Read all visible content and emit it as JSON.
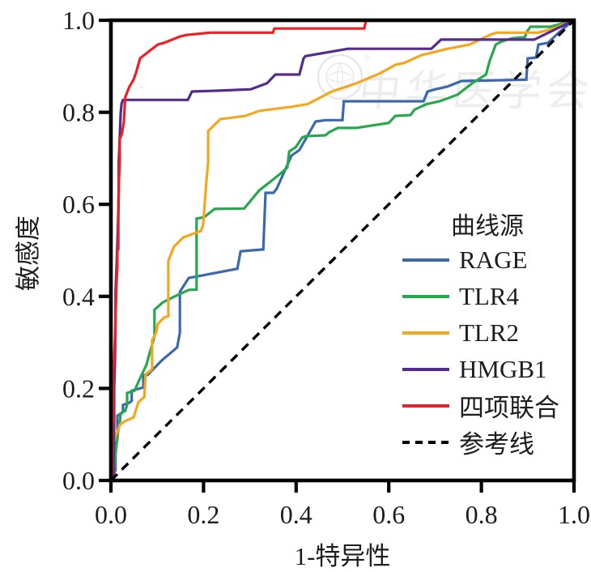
{
  "chart_data": {
    "type": "line",
    "title": "",
    "xlabel": "1-特异性",
    "ylabel": "敏感度",
    "xlim": [
      0,
      1
    ],
    "ylim": [
      0,
      1
    ],
    "grid": false,
    "xtick_labels": [
      "0.0",
      "0.2",
      "0.4",
      "0.6",
      "0.8",
      "1.0"
    ],
    "ytick_labels": [
      "0.0",
      "0.2",
      "0.4",
      "0.6",
      "0.8",
      "1.0"
    ],
    "xticks": [
      0,
      0.2,
      0.4,
      0.6,
      0.8,
      1.0
    ],
    "yticks": [
      0,
      0.2,
      0.4,
      0.6,
      0.8,
      1.0
    ],
    "legend_title": "曲线源",
    "legend_position": "lower-right-inside",
    "axis_color": "#000000",
    "text_color": "#1d1d1f",
    "series": [
      {
        "name": "RAGE",
        "color": "#3c68ae",
        "dashed": false,
        "points": [
          [
            0,
            0
          ],
          [
            0.01,
            0.023
          ],
          [
            0.01,
            0.081
          ],
          [
            0.014,
            0.088
          ],
          [
            0.014,
            0.141
          ],
          [
            0.023,
            0.146
          ],
          [
            0.026,
            0.15
          ],
          [
            0.026,
            0.164
          ],
          [
            0.04,
            0.169
          ],
          [
            0.045,
            0.173
          ],
          [
            0.045,
            0.195
          ],
          [
            0.059,
            0.199
          ],
          [
            0.07,
            0.202
          ],
          [
            0.07,
            0.229
          ],
          [
            0.079,
            0.229
          ],
          [
            0.11,
            0.261
          ],
          [
            0.143,
            0.289
          ],
          [
            0.149,
            0.321
          ],
          [
            0.149,
            0.41
          ],
          [
            0.168,
            0.44
          ],
          [
            0.273,
            0.46
          ],
          [
            0.28,
            0.498
          ],
          [
            0.329,
            0.502
          ],
          [
            0.334,
            0.625
          ],
          [
            0.351,
            0.625
          ],
          [
            0.358,
            0.634
          ],
          [
            0.39,
            0.706
          ],
          [
            0.407,
            0.718
          ],
          [
            0.442,
            0.78
          ],
          [
            0.463,
            0.783
          ],
          [
            0.5,
            0.783
          ],
          [
            0.503,
            0.824
          ],
          [
            0.675,
            0.824
          ],
          [
            0.684,
            0.845
          ],
          [
            0.701,
            0.85
          ],
          [
            0.727,
            0.856
          ],
          [
            0.757,
            0.868
          ],
          [
            0.897,
            0.871
          ],
          [
            0.9,
            0.917
          ],
          [
            0.918,
            0.919
          ],
          [
            0.923,
            0.947
          ],
          [
            0.944,
            0.951
          ],
          [
            0.967,
            0.973
          ],
          [
            0.988,
            0.991
          ],
          [
            1,
            1
          ]
        ]
      },
      {
        "name": "TLR4",
        "color": "#28a74e",
        "dashed": false,
        "points": [
          [
            0,
            0
          ],
          [
            0.005,
            0.014
          ],
          [
            0.016,
            0.111
          ],
          [
            0.019,
            0.12
          ],
          [
            0.021,
            0.146
          ],
          [
            0.031,
            0.151
          ],
          [
            0.035,
            0.164
          ],
          [
            0.035,
            0.19
          ],
          [
            0.051,
            0.195
          ],
          [
            0.063,
            0.222
          ],
          [
            0.077,
            0.252
          ],
          [
            0.08,
            0.264
          ],
          [
            0.094,
            0.313
          ],
          [
            0.094,
            0.371
          ],
          [
            0.112,
            0.387
          ],
          [
            0.138,
            0.4
          ],
          [
            0.168,
            0.414
          ],
          [
            0.185,
            0.415
          ],
          [
            0.185,
            0.569
          ],
          [
            0.201,
            0.572
          ],
          [
            0.215,
            0.583
          ],
          [
            0.224,
            0.59
          ],
          [
            0.288,
            0.591
          ],
          [
            0.32,
            0.63
          ],
          [
            0.343,
            0.648
          ],
          [
            0.364,
            0.665
          ],
          [
            0.381,
            0.68
          ],
          [
            0.385,
            0.715
          ],
          [
            0.399,
            0.724
          ],
          [
            0.413,
            0.745
          ],
          [
            0.42,
            0.748
          ],
          [
            0.463,
            0.75
          ],
          [
            0.472,
            0.757
          ],
          [
            0.49,
            0.766
          ],
          [
            0.53,
            0.766
          ],
          [
            0.542,
            0.768
          ],
          [
            0.6,
            0.777
          ],
          [
            0.614,
            0.792
          ],
          [
            0.647,
            0.794
          ],
          [
            0.656,
            0.806
          ],
          [
            0.682,
            0.818
          ],
          [
            0.71,
            0.824
          ],
          [
            0.748,
            0.838
          ],
          [
            0.78,
            0.863
          ],
          [
            0.81,
            0.882
          ],
          [
            0.818,
            0.912
          ],
          [
            0.831,
            0.947
          ],
          [
            0.844,
            0.954
          ],
          [
            0.867,
            0.961
          ],
          [
            0.894,
            0.963
          ],
          [
            0.897,
            0.973
          ],
          [
            0.906,
            0.986
          ],
          [
            0.949,
            0.986
          ],
          [
            1,
            1
          ]
        ]
      },
      {
        "name": "TLR2",
        "color": "#f4a61f",
        "dashed": false,
        "points": [
          [
            0,
            0
          ],
          [
            0.002,
            0.046
          ],
          [
            0.003,
            0.072
          ],
          [
            0.01,
            0.097
          ],
          [
            0.014,
            0.106
          ],
          [
            0.019,
            0.121
          ],
          [
            0.031,
            0.129
          ],
          [
            0.042,
            0.134
          ],
          [
            0.049,
            0.137
          ],
          [
            0.059,
            0.169
          ],
          [
            0.066,
            0.176
          ],
          [
            0.072,
            0.181
          ],
          [
            0.075,
            0.231
          ],
          [
            0.086,
            0.239
          ],
          [
            0.089,
            0.243
          ],
          [
            0.089,
            0.305
          ],
          [
            0.098,
            0.322
          ],
          [
            0.101,
            0.34
          ],
          [
            0.115,
            0.354
          ],
          [
            0.124,
            0.357
          ],
          [
            0.124,
            0.477
          ],
          [
            0.136,
            0.508
          ],
          [
            0.156,
            0.528
          ],
          [
            0.18,
            0.537
          ],
          [
            0.194,
            0.542
          ],
          [
            0.199,
            0.554
          ],
          [
            0.203,
            0.607
          ],
          [
            0.206,
            0.648
          ],
          [
            0.21,
            0.692
          ],
          [
            0.21,
            0.759
          ],
          [
            0.236,
            0.785
          ],
          [
            0.29,
            0.792
          ],
          [
            0.32,
            0.803
          ],
          [
            0.343,
            0.806
          ],
          [
            0.39,
            0.812
          ],
          [
            0.425,
            0.818
          ],
          [
            0.477,
            0.845
          ],
          [
            0.53,
            0.863
          ],
          [
            0.582,
            0.885
          ],
          [
            0.614,
            0.903
          ],
          [
            0.635,
            0.908
          ],
          [
            0.67,
            0.924
          ],
          [
            0.727,
            0.938
          ],
          [
            0.774,
            0.947
          ],
          [
            0.818,
            0.968
          ],
          [
            0.832,
            0.973
          ],
          [
            0.923,
            0.973
          ],
          [
            0.955,
            0.982
          ],
          [
            1,
            1
          ]
        ]
      },
      {
        "name": "HMGB1",
        "color": "#542c8e",
        "dashed": false,
        "points": [
          [
            0,
            0
          ],
          [
            0.005,
            0.005
          ],
          [
            0.007,
            0.129
          ],
          [
            0.007,
            0.199
          ],
          [
            0.009,
            0.269
          ],
          [
            0.01,
            0.34
          ],
          [
            0.01,
            0.41
          ],
          [
            0.012,
            0.463
          ],
          [
            0.014,
            0.516
          ],
          [
            0.016,
            0.586
          ],
          [
            0.017,
            0.639
          ],
          [
            0.017,
            0.692
          ],
          [
            0.019,
            0.745
          ],
          [
            0.021,
            0.797
          ],
          [
            0.023,
            0.819
          ],
          [
            0.026,
            0.827
          ],
          [
            0.166,
            0.827
          ],
          [
            0.175,
            0.845
          ],
          [
            0.233,
            0.847
          ],
          [
            0.302,
            0.85
          ],
          [
            0.337,
            0.863
          ],
          [
            0.355,
            0.882
          ],
          [
            0.407,
            0.882
          ],
          [
            0.416,
            0.917
          ],
          [
            0.42,
            0.922
          ],
          [
            0.512,
            0.938
          ],
          [
            0.692,
            0.938
          ],
          [
            0.713,
            0.958
          ],
          [
            0.914,
            0.958
          ],
          [
            1,
            1
          ]
        ]
      },
      {
        "name": "四项联合",
        "color": "#eb2128",
        "dashed": false,
        "points": [
          [
            0,
            0
          ],
          [
            0.003,
            0.014
          ],
          [
            0.003,
            0.125
          ],
          [
            0.005,
            0.125
          ],
          [
            0.005,
            0.239
          ],
          [
            0.007,
            0.269
          ],
          [
            0.009,
            0.313
          ],
          [
            0.01,
            0.357
          ],
          [
            0.012,
            0.428
          ],
          [
            0.014,
            0.463
          ],
          [
            0.014,
            0.498
          ],
          [
            0.016,
            0.503
          ],
          [
            0.016,
            0.572
          ],
          [
            0.017,
            0.639
          ],
          [
            0.019,
            0.692
          ],
          [
            0.019,
            0.741
          ],
          [
            0.024,
            0.754
          ],
          [
            0.028,
            0.78
          ],
          [
            0.031,
            0.833
          ],
          [
            0.04,
            0.856
          ],
          [
            0.049,
            0.871
          ],
          [
            0.054,
            0.885
          ],
          [
            0.063,
            0.917
          ],
          [
            0.079,
            0.93
          ],
          [
            0.101,
            0.947
          ],
          [
            0.115,
            0.951
          ],
          [
            0.15,
            0.965
          ],
          [
            0.163,
            0.968
          ],
          [
            0.215,
            0.973
          ],
          [
            0.35,
            0.973
          ],
          [
            0.353,
            0.982
          ],
          [
            0.547,
            0.982
          ],
          [
            0.551,
            1
          ],
          [
            1,
            1
          ]
        ]
      },
      {
        "name": "参考线",
        "color": "#000000",
        "dashed": true,
        "points": [
          [
            0,
            0
          ],
          [
            1,
            1
          ]
        ]
      }
    ],
    "watermark": {
      "text": "中华医学会",
      "registered_mark": "®"
    }
  }
}
